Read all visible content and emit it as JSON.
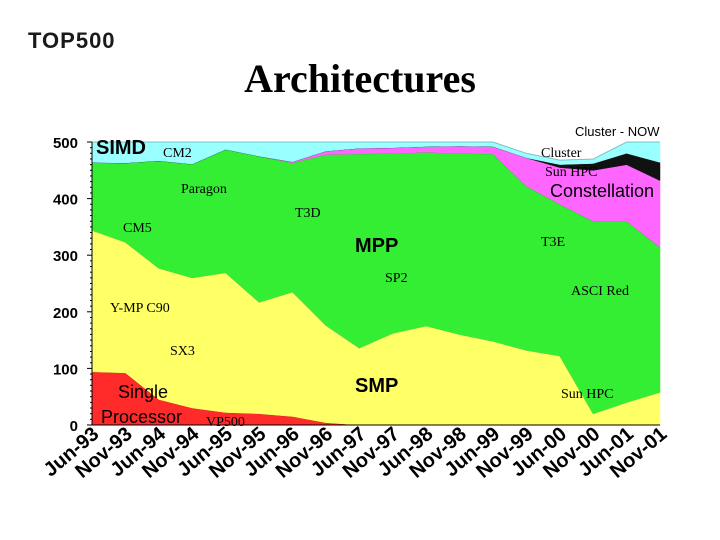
{
  "logo": {
    "text": "TOP500"
  },
  "chart_data": {
    "type": "area",
    "title": "Architectures",
    "xlabel": "",
    "ylabel": "",
    "ylim": [
      0,
      500
    ],
    "yticks": [
      0,
      100,
      200,
      300,
      400,
      500
    ],
    "categories": [
      "Jun-93",
      "Nov-93",
      "Jun-94",
      "Nov-94",
      "Jun-95",
      "Nov-95",
      "Jun-96",
      "Nov-96",
      "Jun-97",
      "Nov-97",
      "Jun-98",
      "Nov-98",
      "Jun-99",
      "Nov-99",
      "Jun-00",
      "Nov-00",
      "Jun-01",
      "Nov-01"
    ],
    "series": [
      {
        "name": "Single Processor",
        "color": "#ff2a2a",
        "values": [
          94,
          92,
          45,
          30,
          22,
          20,
          15,
          4,
          0,
          0,
          0,
          0,
          0,
          0,
          0,
          0,
          0,
          0
        ]
      },
      {
        "name": "SMP",
        "color": "#ffff66",
        "values": [
          250,
          231,
          232,
          230,
          247,
          197,
          220,
          172,
          136,
          162,
          175,
          160,
          148,
          132,
          122,
          20,
          40,
          58
        ]
      },
      {
        "name": "MPP",
        "color": "#33ee33",
        "values": [
          120,
          140,
          190,
          201,
          218,
          258,
          228,
          302,
          343,
          318,
          307,
          320,
          331,
          290,
          268,
          340,
          320,
          256
        ]
      },
      {
        "name": "Constellation",
        "color": "#ff66ff",
        "values": [
          0,
          0,
          0,
          0,
          0,
          0,
          2,
          6,
          10,
          10,
          10,
          13,
          13,
          50,
          65,
          90,
          100,
          118
        ]
      },
      {
        "name": "Cluster - NOW",
        "color": "#111111",
        "values": [
          0,
          0,
          0,
          0,
          0,
          0,
          0,
          0,
          0,
          0,
          0,
          0,
          0,
          0,
          5,
          12,
          20,
          32
        ]
      },
      {
        "name": "SIMD",
        "color": "#99ffff",
        "values": [
          36,
          37,
          33,
          39,
          13,
          25,
          35,
          16,
          11,
          10,
          8,
          7,
          8,
          8,
          8,
          8,
          20,
          36
        ]
      }
    ],
    "labels": {
      "simd": "SIMD",
      "cm2": "CM2",
      "cluster_now": "Cluster - NOW",
      "cluster_partial": "Cluster",
      "sun_hpc_top": "Sun HPC",
      "paragon": "Paragon",
      "constellation": "Constellation",
      "t3d": "T3D",
      "cm5": "CM5",
      "mpp": "MPP",
      "t3e": "T3E",
      "sp2": "SP2",
      "asci_red": "ASCI Red",
      "ymp": "Y-MP C90",
      "sx3": "SX3",
      "single_1": "Single",
      "single_2": "Processor",
      "smp": "SMP",
      "sun_hpc_bottom": "Sun HPC",
      "vp500": "VP500"
    }
  }
}
